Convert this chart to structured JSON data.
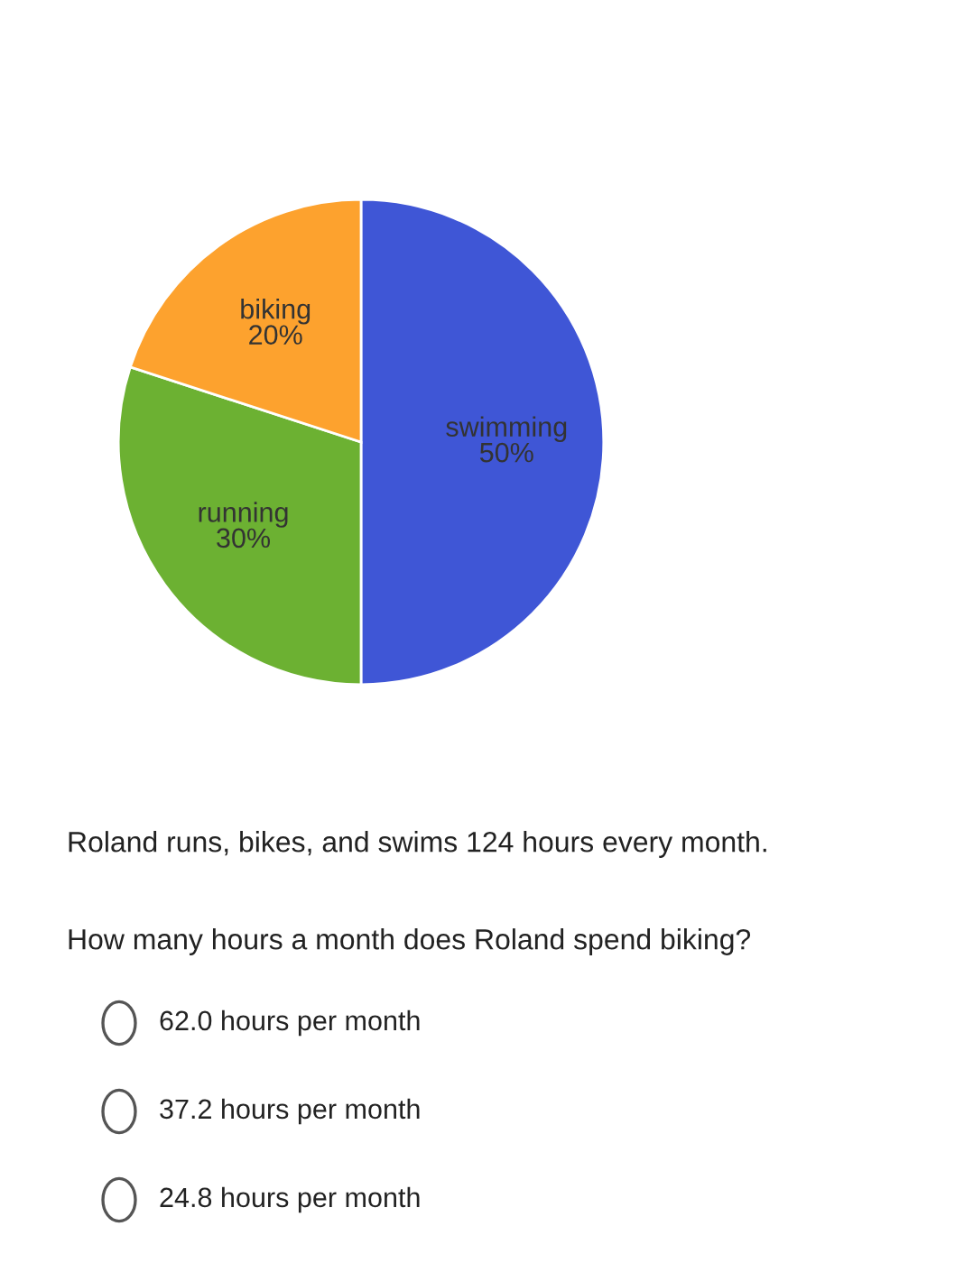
{
  "chart_data": {
    "type": "pie",
    "categories": [
      "swimming",
      "running",
      "biking"
    ],
    "values": [
      50,
      30,
      20
    ],
    "value_labels": [
      "50%",
      "30%",
      "20%"
    ],
    "colors": [
      "#3f56d6",
      "#6cb132",
      "#fda22e"
    ],
    "legend": false,
    "annotations": [
      "Roland runs, bikes, and swims 124 hours every month.",
      "How many hours a month does Roland spend biking?",
      "62.0 hours per month",
      "37.2 hours per month",
      "24.8 hours per month"
    ]
  }
}
